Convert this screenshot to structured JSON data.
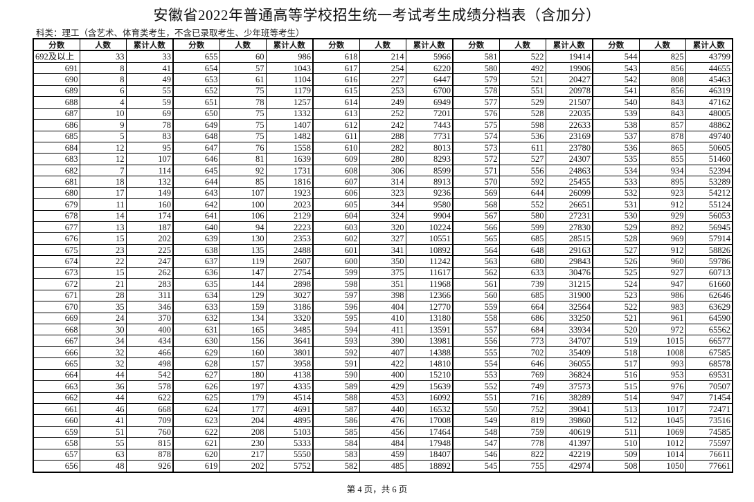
{
  "title": "安徽省2022年普通高等学校招生统一考试考生成绩分档表（含加分）",
  "subtitle": "科类：理工（含艺术、体育类考生，不含已录取考生、少年班等考生）",
  "headers": [
    "分数",
    "人数",
    "累计人数"
  ],
  "rows": [
    [
      "692及以上",
      "33",
      "33",
      "655",
      "60",
      "986",
      "618",
      "214",
      "5966",
      "581",
      "522",
      "19414",
      "544",
      "825",
      "43799"
    ],
    [
      "691",
      "8",
      "41",
      "654",
      "57",
      "1043",
      "617",
      "254",
      "6220",
      "580",
      "492",
      "19906",
      "543",
      "856",
      "44655"
    ],
    [
      "690",
      "8",
      "49",
      "653",
      "61",
      "1104",
      "616",
      "227",
      "6447",
      "579",
      "521",
      "20427",
      "542",
      "808",
      "45463"
    ],
    [
      "689",
      "6",
      "55",
      "652",
      "75",
      "1179",
      "615",
      "253",
      "6700",
      "578",
      "551",
      "20978",
      "541",
      "856",
      "46319"
    ],
    [
      "688",
      "4",
      "59",
      "651",
      "78",
      "1257",
      "614",
      "249",
      "6949",
      "577",
      "529",
      "21507",
      "540",
      "843",
      "47162"
    ],
    [
      "687",
      "10",
      "69",
      "650",
      "75",
      "1332",
      "613",
      "252",
      "7201",
      "576",
      "528",
      "22035",
      "539",
      "843",
      "48005"
    ],
    [
      "686",
      "9",
      "78",
      "649",
      "75",
      "1407",
      "612",
      "242",
      "7443",
      "575",
      "598",
      "22633",
      "538",
      "857",
      "48862"
    ],
    [
      "685",
      "5",
      "83",
      "648",
      "75",
      "1482",
      "611",
      "288",
      "7731",
      "574",
      "536",
      "23169",
      "537",
      "878",
      "49740"
    ],
    [
      "684",
      "12",
      "95",
      "647",
      "76",
      "1558",
      "610",
      "282",
      "8013",
      "573",
      "611",
      "23780",
      "536",
      "865",
      "50605"
    ],
    [
      "683",
      "12",
      "107",
      "646",
      "81",
      "1639",
      "609",
      "280",
      "8293",
      "572",
      "527",
      "24307",
      "535",
      "855",
      "51460"
    ],
    [
      "682",
      "7",
      "114",
      "645",
      "92",
      "1731",
      "608",
      "306",
      "8599",
      "571",
      "556",
      "24863",
      "534",
      "934",
      "52394"
    ],
    [
      "681",
      "18",
      "132",
      "644",
      "85",
      "1816",
      "607",
      "314",
      "8913",
      "570",
      "592",
      "25455",
      "533",
      "895",
      "53289"
    ],
    [
      "680",
      "17",
      "149",
      "643",
      "107",
      "1923",
      "606",
      "323",
      "9236",
      "569",
      "644",
      "26099",
      "532",
      "923",
      "54212"
    ],
    [
      "679",
      "11",
      "160",
      "642",
      "100",
      "2023",
      "605",
      "344",
      "9580",
      "568",
      "552",
      "26651",
      "531",
      "912",
      "55124"
    ],
    [
      "678",
      "14",
      "174",
      "641",
      "106",
      "2129",
      "604",
      "324",
      "9904",
      "567",
      "580",
      "27231",
      "530",
      "929",
      "56053"
    ],
    [
      "677",
      "13",
      "187",
      "640",
      "94",
      "2223",
      "603",
      "320",
      "10224",
      "566",
      "599",
      "27830",
      "529",
      "892",
      "56945"
    ],
    [
      "676",
      "15",
      "202",
      "639",
      "130",
      "2353",
      "602",
      "327",
      "10551",
      "565",
      "685",
      "28515",
      "528",
      "969",
      "57914"
    ],
    [
      "675",
      "23",
      "225",
      "638",
      "135",
      "2488",
      "601",
      "341",
      "10892",
      "564",
      "648",
      "29163",
      "527",
      "912",
      "58826"
    ],
    [
      "674",
      "22",
      "247",
      "637",
      "119",
      "2607",
      "600",
      "350",
      "11242",
      "563",
      "680",
      "29843",
      "526",
      "960",
      "59786"
    ],
    [
      "673",
      "15",
      "262",
      "636",
      "147",
      "2754",
      "599",
      "375",
      "11617",
      "562",
      "633",
      "30476",
      "525",
      "927",
      "60713"
    ],
    [
      "672",
      "21",
      "283",
      "635",
      "144",
      "2898",
      "598",
      "351",
      "11968",
      "561",
      "739",
      "31215",
      "524",
      "947",
      "61660"
    ],
    [
      "671",
      "28",
      "311",
      "634",
      "129",
      "3027",
      "597",
      "398",
      "12366",
      "560",
      "685",
      "31900",
      "523",
      "986",
      "62646"
    ],
    [
      "670",
      "35",
      "346",
      "633",
      "159",
      "3186",
      "596",
      "404",
      "12770",
      "559",
      "664",
      "32564",
      "522",
      "983",
      "63629"
    ],
    [
      "669",
      "24",
      "370",
      "632",
      "134",
      "3320",
      "595",
      "410",
      "13180",
      "558",
      "686",
      "33250",
      "521",
      "961",
      "64590"
    ],
    [
      "668",
      "30",
      "400",
      "631",
      "165",
      "3485",
      "594",
      "411",
      "13591",
      "557",
      "684",
      "33934",
      "520",
      "972",
      "65562"
    ],
    [
      "667",
      "34",
      "434",
      "630",
      "156",
      "3641",
      "593",
      "390",
      "13981",
      "556",
      "773",
      "34707",
      "519",
      "1015",
      "66577"
    ],
    [
      "666",
      "32",
      "466",
      "629",
      "160",
      "3801",
      "592",
      "407",
      "14388",
      "555",
      "702",
      "35409",
      "518",
      "1008",
      "67585"
    ],
    [
      "665",
      "32",
      "498",
      "628",
      "157",
      "3958",
      "591",
      "422",
      "14810",
      "554",
      "646",
      "36055",
      "517",
      "993",
      "68578"
    ],
    [
      "664",
      "44",
      "542",
      "627",
      "180",
      "4138",
      "590",
      "400",
      "15210",
      "553",
      "769",
      "36824",
      "516",
      "953",
      "69531"
    ],
    [
      "663",
      "36",
      "578",
      "626",
      "197",
      "4335",
      "589",
      "429",
      "15639",
      "552",
      "749",
      "37573",
      "515",
      "976",
      "70507"
    ],
    [
      "662",
      "44",
      "622",
      "625",
      "179",
      "4514",
      "588",
      "453",
      "16092",
      "551",
      "716",
      "38289",
      "514",
      "947",
      "71454"
    ],
    [
      "661",
      "46",
      "668",
      "624",
      "177",
      "4691",
      "587",
      "440",
      "16532",
      "550",
      "752",
      "39041",
      "513",
      "1017",
      "72471"
    ],
    [
      "660",
      "41",
      "709",
      "623",
      "204",
      "4895",
      "586",
      "476",
      "17008",
      "549",
      "819",
      "39860",
      "512",
      "1045",
      "73516"
    ],
    [
      "659",
      "51",
      "760",
      "622",
      "208",
      "5103",
      "585",
      "456",
      "17464",
      "548",
      "759",
      "40619",
      "511",
      "1069",
      "74585"
    ],
    [
      "658",
      "55",
      "815",
      "621",
      "230",
      "5333",
      "584",
      "484",
      "17948",
      "547",
      "778",
      "41397",
      "510",
      "1012",
      "75597"
    ],
    [
      "657",
      "63",
      "878",
      "620",
      "217",
      "5550",
      "583",
      "459",
      "18407",
      "546",
      "822",
      "42219",
      "509",
      "1014",
      "76611"
    ],
    [
      "656",
      "48",
      "926",
      "619",
      "202",
      "5752",
      "582",
      "485",
      "18892",
      "545",
      "755",
      "42974",
      "508",
      "1050",
      "77661"
    ]
  ],
  "footer": "第 4 页，共 6 页"
}
